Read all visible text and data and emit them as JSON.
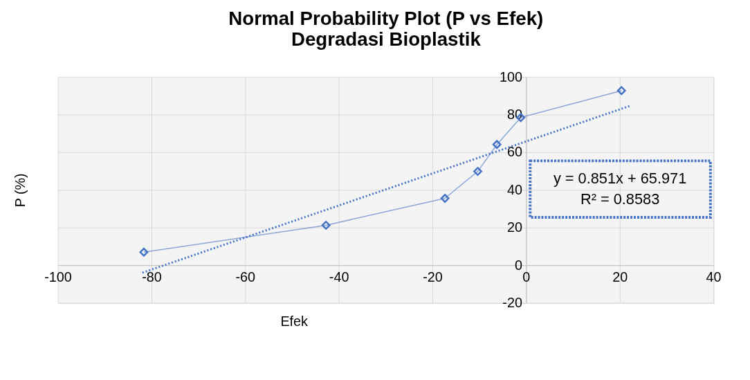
{
  "chart_data": {
    "type": "line",
    "title": "Normal Probability Plot (P vs Efek) Degradasi Bioplastik",
    "xlabel": "Efek",
    "ylabel": "P (%)",
    "xlim": [
      -100,
      40
    ],
    "xticks": [
      -100,
      -80,
      -60,
      -40,
      -20,
      0,
      20,
      40
    ],
    "ylim": [
      -20,
      100
    ],
    "yticks": [
      -20,
      0,
      20,
      40,
      60,
      80,
      100
    ],
    "grid": true,
    "marker": "diamond",
    "series": [
      {
        "color": "#4472c4",
        "line_style": "solid",
        "x": [
          -81.7,
          -42.8,
          -17.4,
          -10.4,
          -6.3,
          -1.2,
          20.3
        ],
        "values": [
          7.1,
          21.4,
          35.7,
          50,
          64.3,
          78.6,
          92.9
        ]
      },
      {
        "color": "#4472c4",
        "line_style": "dotted",
        "marker": "none",
        "x": [
          -82,
          22
        ],
        "values": [
          -3.8,
          84.7
        ]
      }
    ],
    "annotations": [
      "y = 0.851x + 65.971\nR² = 0.8583"
    ]
  }
}
